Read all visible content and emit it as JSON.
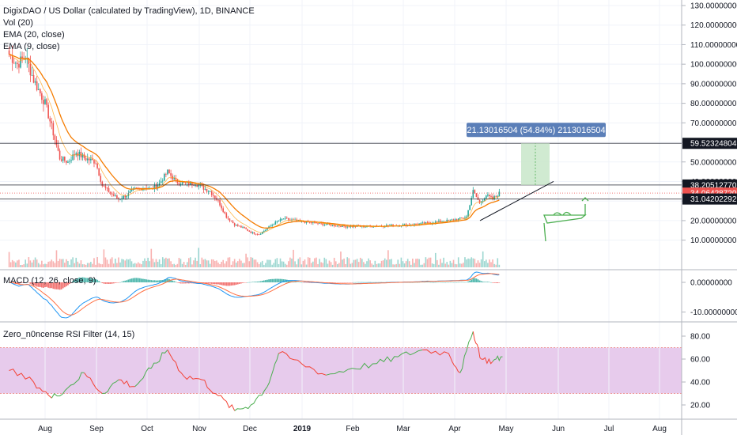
{
  "header": {
    "title": "DigixDAO / US Dollar (calculated by TradingView), 1D, BINANCE",
    "vol": "Vol (20)",
    "ema20": "EMA (20, close)",
    "ema9": "EMA (9, close)"
  },
  "macd_label": "MACD (12, 26, close, 9)",
  "rsi_label": "Zero_n0ncense RSI Filter (14, 15)",
  "measure_label": "21.13016504 (54.84%) 2113016504",
  "colors": {
    "up": "#26a69a",
    "down": "#ef5350",
    "ema20": "#f57c00",
    "ema9": "#f57c00",
    "rsi_band": "#e1bee7",
    "rsi_line_up": "#4caf50",
    "rsi_line_down": "#f44336",
    "price_badge_level": "#131722",
    "price_badge_current": "#ef5350",
    "measure_box": "#c8e6c9",
    "measure_label_bg": "#5b7fb8",
    "drawing": "#4caf50"
  },
  "chart_data": [
    {
      "type": "candlestick",
      "title": "DigixDAO / US Dollar (calculated by TradingView), 1D, BINANCE",
      "x_tick_labels": [
        "Aug",
        "Sep",
        "Oct",
        "Nov",
        "Dec",
        "2019",
        "Feb",
        "Mar",
        "Apr",
        "May",
        "Jun",
        "Jul",
        "Aug"
      ],
      "y_tick_labels": [
        "130.00000000",
        "120.00000000",
        "110.00000000",
        "100.00000000",
        "90.00000000",
        "80.00000000",
        "70.00000000",
        "60.00000000",
        "50.00000000",
        "40.00000000",
        "30.00000000",
        "20.00000000",
        "10.00000000"
      ],
      "ylim": [
        5,
        130
      ],
      "price_levels": [
        {
          "value": "59.52324804",
          "kind": "level"
        },
        {
          "value": "38.20512770",
          "kind": "level"
        },
        {
          "value": "34.06428720",
          "kind": "current"
        },
        {
          "value": "31.04202292",
          "kind": "level"
        }
      ],
      "close_series": [
        {
          "date": "2018-07-10",
          "value": 105
        },
        {
          "date": "2018-07-15",
          "value": 100
        },
        {
          "date": "2018-07-20",
          "value": 104
        },
        {
          "date": "2018-07-25",
          "value": 92
        },
        {
          "date": "2018-08-01",
          "value": 80
        },
        {
          "date": "2018-08-05",
          "value": 68
        },
        {
          "date": "2018-08-10",
          "value": 52
        },
        {
          "date": "2018-08-15",
          "value": 50
        },
        {
          "date": "2018-08-20",
          "value": 55
        },
        {
          "date": "2018-08-25",
          "value": 52
        },
        {
          "date": "2018-09-01",
          "value": 50
        },
        {
          "date": "2018-09-05",
          "value": 38
        },
        {
          "date": "2018-09-10",
          "value": 34
        },
        {
          "date": "2018-09-15",
          "value": 31
        },
        {
          "date": "2018-09-20",
          "value": 33
        },
        {
          "date": "2018-09-25",
          "value": 36
        },
        {
          "date": "2018-10-01",
          "value": 37
        },
        {
          "date": "2018-10-05",
          "value": 36
        },
        {
          "date": "2018-10-10",
          "value": 39
        },
        {
          "date": "2018-10-15",
          "value": 45
        },
        {
          "date": "2018-10-20",
          "value": 40
        },
        {
          "date": "2018-10-25",
          "value": 39
        },
        {
          "date": "2018-11-01",
          "value": 39
        },
        {
          "date": "2018-11-05",
          "value": 37
        },
        {
          "date": "2018-11-10",
          "value": 35
        },
        {
          "date": "2018-11-15",
          "value": 30
        },
        {
          "date": "2018-11-20",
          "value": 22
        },
        {
          "date": "2018-11-25",
          "value": 18
        },
        {
          "date": "2018-12-01",
          "value": 16
        },
        {
          "date": "2018-12-05",
          "value": 14
        },
        {
          "date": "2018-12-10",
          "value": 13
        },
        {
          "date": "2018-12-15",
          "value": 16
        },
        {
          "date": "2018-12-20",
          "value": 19
        },
        {
          "date": "2018-12-25",
          "value": 21
        },
        {
          "date": "2019-01-01",
          "value": 20
        },
        {
          "date": "2019-01-10",
          "value": 19
        },
        {
          "date": "2019-01-20",
          "value": 18
        },
        {
          "date": "2019-02-01",
          "value": 17
        },
        {
          "date": "2019-02-15",
          "value": 17
        },
        {
          "date": "2019-03-01",
          "value": 17.5
        },
        {
          "date": "2019-03-15",
          "value": 18
        },
        {
          "date": "2019-03-25",
          "value": 19
        },
        {
          "date": "2019-04-05",
          "value": 20
        },
        {
          "date": "2019-04-12",
          "value": 21
        },
        {
          "date": "2019-04-16",
          "value": 22
        },
        {
          "date": "2019-04-20",
          "value": 35
        },
        {
          "date": "2019-04-24",
          "value": 29
        },
        {
          "date": "2019-04-28",
          "value": 33
        },
        {
          "date": "2019-05-02",
          "value": 31
        },
        {
          "date": "2019-05-06",
          "value": 34
        }
      ]
    },
    {
      "type": "line",
      "title": "MACD (12, 26, close, 9)",
      "y_tick_labels": [
        "0.00000000",
        "-10.00000000"
      ],
      "ylim": [
        -13,
        3
      ]
    },
    {
      "type": "line",
      "title": "Zero_n0ncense RSI Filter (14, 15)",
      "y_tick_labels": [
        "80.00",
        "60.00",
        "40.00",
        "20.00"
      ],
      "ylim": [
        10,
        88
      ],
      "band": [
        30,
        70
      ],
      "series": [
        {
          "values": [
            {
              "date": "2018-07-10",
              "value": 50
            },
            {
              "date": "2018-07-25",
              "value": 40
            },
            {
              "date": "2018-08-05",
              "value": 26
            },
            {
              "date": "2018-08-15",
              "value": 35
            },
            {
              "date": "2018-08-25",
              "value": 48
            },
            {
              "date": "2018-09-05",
              "value": 30
            },
            {
              "date": "2018-09-15",
              "value": 42
            },
            {
              "date": "2018-09-25",
              "value": 36
            },
            {
              "date": "2018-10-05",
              "value": 52
            },
            {
              "date": "2018-10-15",
              "value": 68
            },
            {
              "date": "2018-10-25",
              "value": 45
            },
            {
              "date": "2018-11-05",
              "value": 42
            },
            {
              "date": "2018-11-15",
              "value": 28
            },
            {
              "date": "2018-11-25",
              "value": 15
            },
            {
              "date": "2018-12-05",
              "value": 20
            },
            {
              "date": "2018-12-15",
              "value": 36
            },
            {
              "date": "2018-12-22",
              "value": 65
            },
            {
              "date": "2019-01-05",
              "value": 56
            },
            {
              "date": "2019-01-20",
              "value": 46
            },
            {
              "date": "2019-02-05",
              "value": 52
            },
            {
              "date": "2019-02-20",
              "value": 56
            },
            {
              "date": "2019-03-05",
              "value": 62
            },
            {
              "date": "2019-03-20",
              "value": 68
            },
            {
              "date": "2019-04-05",
              "value": 65
            },
            {
              "date": "2019-04-12",
              "value": 48
            },
            {
              "date": "2019-04-20",
              "value": 84
            },
            {
              "date": "2019-04-25",
              "value": 60
            },
            {
              "date": "2019-05-02",
              "value": 58
            },
            {
              "date": "2019-05-08",
              "value": 62
            }
          ]
        }
      ]
    }
  ]
}
